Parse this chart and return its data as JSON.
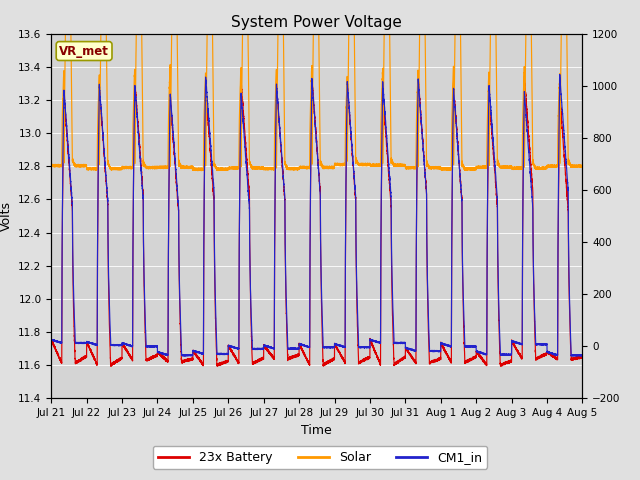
{
  "title": "System Power Voltage",
  "ylabel_left": "Volts",
  "xlabel": "Time",
  "ylim_left": [
    11.4,
    13.6
  ],
  "ylim_right": [
    -200,
    1200
  ],
  "yticks_left": [
    11.4,
    11.6,
    11.8,
    12.0,
    12.2,
    12.4,
    12.6,
    12.8,
    13.0,
    13.2,
    13.4,
    13.6
  ],
  "yticks_right": [
    -200,
    0,
    200,
    400,
    600,
    800,
    1000,
    1200
  ],
  "fig_bg_color": "#e0e0e0",
  "plot_bg_color": "#d4d4d4",
  "annotation_text": "VR_met",
  "annotation_color": "#880000",
  "annotation_bg": "#ffffcc",
  "annotation_edge": "#999900",
  "line_battery_color": "#dd0000",
  "line_solar_color": "#ff9900",
  "line_cm1_color": "#2222cc",
  "legend_labels": [
    "23x Battery",
    "Solar",
    "CM1_in"
  ],
  "xtick_labels": [
    "Jul 21",
    "Jul 22",
    "Jul 23",
    "Jul 24",
    "Jul 25",
    "Jul 26",
    "Jul 27",
    "Jul 28",
    "Jul 29",
    "Jul 30",
    "Jul 31",
    "Aug 1",
    "Aug 2",
    "Aug 3",
    "Aug 4",
    "Aug 5"
  ],
  "xtick_positions": [
    0,
    1,
    2,
    3,
    4,
    5,
    6,
    7,
    8,
    9,
    10,
    11,
    12,
    13,
    14,
    15
  ],
  "n_days": 15,
  "title_fontsize": 11,
  "tick_fontsize": 7.5,
  "ylabel_fontsize": 9,
  "xlabel_fontsize": 9
}
